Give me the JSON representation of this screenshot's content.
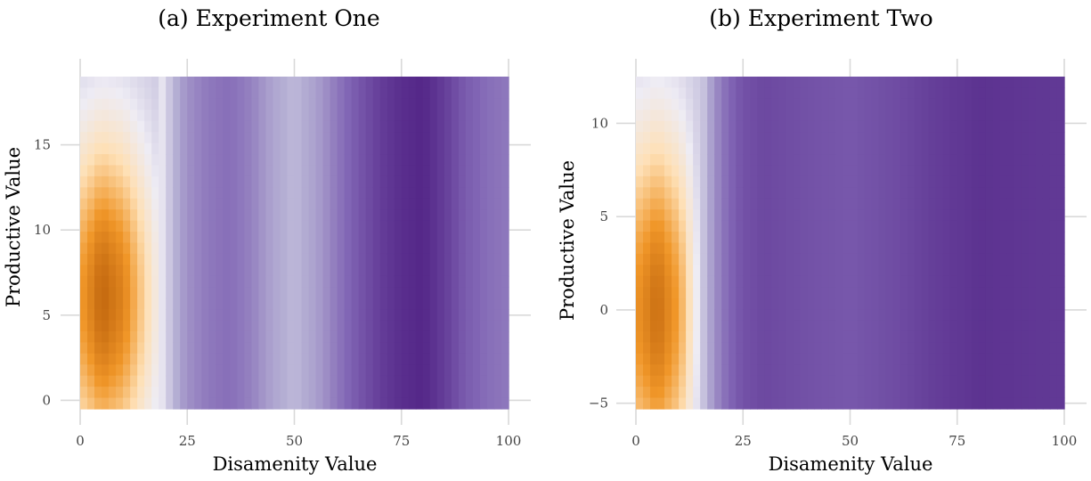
{
  "chart_data": [
    {
      "type": "heatmap",
      "title": "(a) Experiment One",
      "xlabel": "Disamenity Value",
      "ylabel": "Productive Value",
      "xlim": [
        0,
        100
      ],
      "ylim": [
        -0.5,
        19
      ],
      "xticks": [
        0,
        25,
        50,
        75,
        100
      ],
      "yticks": [
        0,
        5,
        10,
        15
      ],
      "grid": true,
      "colormap": "orange-white-purple diverging",
      "x_bands": [
        {
          "x": 1,
          "value": 0.62
        },
        {
          "x": 5,
          "value": 0.9
        },
        {
          "x": 10,
          "value": 0.72
        },
        {
          "x": 15,
          "value": 0.3
        },
        {
          "x": 20,
          "value": -0.1
        },
        {
          "x": 25,
          "value": -0.38
        },
        {
          "x": 30,
          "value": -0.5
        },
        {
          "x": 35,
          "value": -0.55
        },
        {
          "x": 40,
          "value": -0.45
        },
        {
          "x": 45,
          "value": -0.28
        },
        {
          "x": 50,
          "value": -0.2
        },
        {
          "x": 55,
          "value": -0.3
        },
        {
          "x": 60,
          "value": -0.5
        },
        {
          "x": 65,
          "value": -0.68
        },
        {
          "x": 70,
          "value": -0.85
        },
        {
          "x": 75,
          "value": -0.95
        },
        {
          "x": 80,
          "value": -1.0
        },
        {
          "x": 85,
          "value": -0.85
        },
        {
          "x": 90,
          "value": -0.65
        },
        {
          "x": 95,
          "value": -0.55
        },
        {
          "x": 100,
          "value": -0.5
        }
      ],
      "y_peak": 6,
      "y_spread": 9
    },
    {
      "type": "heatmap",
      "title": "(b) Experiment Two",
      "xlabel": "Disamenity Value",
      "ylabel": "Productive Value",
      "xlim": [
        0,
        100
      ],
      "ylim": [
        -5.3,
        12.5
      ],
      "xticks": [
        0,
        25,
        50,
        75,
        100
      ],
      "yticks": [
        -5,
        0,
        5,
        10
      ],
      "ytick_labels": [
        "−5",
        "0",
        "5",
        "10"
      ],
      "grid": true,
      "colormap": "orange-white-purple diverging",
      "x_bands": [
        {
          "x": 1,
          "value": 0.65
        },
        {
          "x": 5,
          "value": 0.85
        },
        {
          "x": 10,
          "value": 0.55
        },
        {
          "x": 15,
          "value": -0.1
        },
        {
          "x": 20,
          "value": -0.5
        },
        {
          "x": 25,
          "value": -0.72
        },
        {
          "x": 30,
          "value": -0.78
        },
        {
          "x": 40,
          "value": -0.72
        },
        {
          "x": 50,
          "value": -0.68
        },
        {
          "x": 60,
          "value": -0.75
        },
        {
          "x": 70,
          "value": -0.85
        },
        {
          "x": 80,
          "value": -0.92
        },
        {
          "x": 90,
          "value": -0.9
        },
        {
          "x": 100,
          "value": -0.88
        }
      ],
      "y_peak": 0,
      "y_spread": 9
    }
  ]
}
